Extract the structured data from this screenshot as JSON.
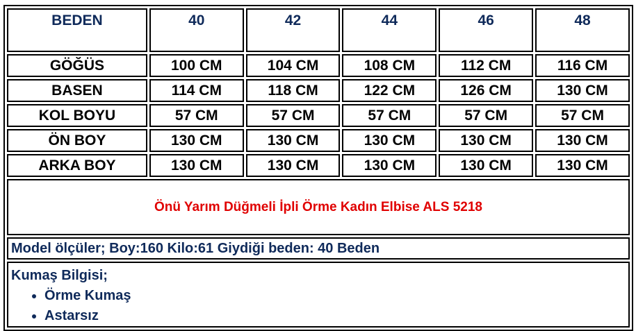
{
  "headers": [
    "BEDEN",
    "40",
    "42",
    "44",
    "46",
    "48"
  ],
  "rows": [
    {
      "label": "GÖĞÜS",
      "values": [
        "100 CM",
        "104 CM",
        "108 CM",
        "112 CM",
        "116 CM"
      ]
    },
    {
      "label": "BASEN",
      "values": [
        "114 CM",
        "118 CM",
        "122 CM",
        "126 CM",
        "130 CM"
      ]
    },
    {
      "label": "KOL BOYU",
      "values": [
        "57 CM",
        "57 CM",
        "57 CM",
        "57 CM",
        "57 CM"
      ]
    },
    {
      "label": "ÖN BOY",
      "values": [
        "130 CM",
        "130 CM",
        "130 CM",
        "130 CM",
        "130 CM"
      ]
    },
    {
      "label": "ARKA BOY",
      "values": [
        "130 CM",
        "130 CM",
        "130 CM",
        "130 CM",
        "130 CM"
      ]
    }
  ],
  "product_title": "Önü Yarım Düğmeli İpli Örme Kadın Elbise ALS 5218",
  "model_info": "Model ölçüler; Boy:160 Kilo:61 Giydiği beden: 40 Beden",
  "fabric": {
    "heading": "Kumaş Bilgisi;",
    "items": [
      "Örme Kumaş",
      "Astarsız"
    ]
  },
  "colors": {
    "header_text": "#0f2a5a",
    "title_text": "#e00000"
  }
}
